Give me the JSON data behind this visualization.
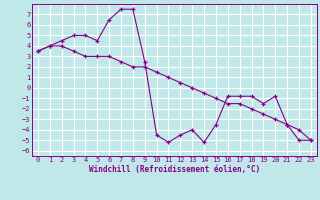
{
  "xlabel": "Windchill (Refroidissement éolien,°C)",
  "background_color": "#c0e8e8",
  "grid_color": "#ffffff",
  "line_color": "#880088",
  "x_hours": [
    0,
    1,
    2,
    3,
    4,
    5,
    6,
    7,
    8,
    9,
    10,
    11,
    12,
    13,
    14,
    15,
    16,
    17,
    18,
    19,
    20,
    21,
    22,
    23
  ],
  "series1_y": [
    3.5,
    4.0,
    4.0,
    3.5,
    3.0,
    3.0,
    3.0,
    2.5,
    2.0,
    2.0,
    1.5,
    1.0,
    0.5,
    0.0,
    -0.5,
    -1.0,
    -1.5,
    -1.5,
    -2.0,
    -2.5,
    -3.0,
    -3.5,
    -4.0,
    -5.0
  ],
  "series2_y": [
    3.5,
    4.0,
    4.5,
    5.0,
    5.0,
    4.5,
    6.5,
    7.5,
    7.5,
    2.5,
    -4.5,
    -5.2,
    -4.5,
    -4.0,
    -5.2,
    -3.5,
    -0.8,
    -0.8,
    -0.8,
    -1.5,
    -0.8,
    -3.5,
    -5.0,
    -5.0
  ],
  "ylim": [
    -6.5,
    8.0
  ],
  "xlim": [
    -0.5,
    23.5
  ],
  "yticks": [
    7,
    6,
    5,
    4,
    3,
    2,
    1,
    0,
    -1,
    -2,
    -3,
    -4,
    -5,
    -6
  ],
  "xticks": [
    0,
    1,
    2,
    3,
    4,
    5,
    6,
    7,
    8,
    9,
    10,
    11,
    12,
    13,
    14,
    15,
    16,
    17,
    18,
    19,
    20,
    21,
    22,
    23
  ],
  "tick_fontsize": 5.0,
  "xlabel_fontsize": 5.5
}
